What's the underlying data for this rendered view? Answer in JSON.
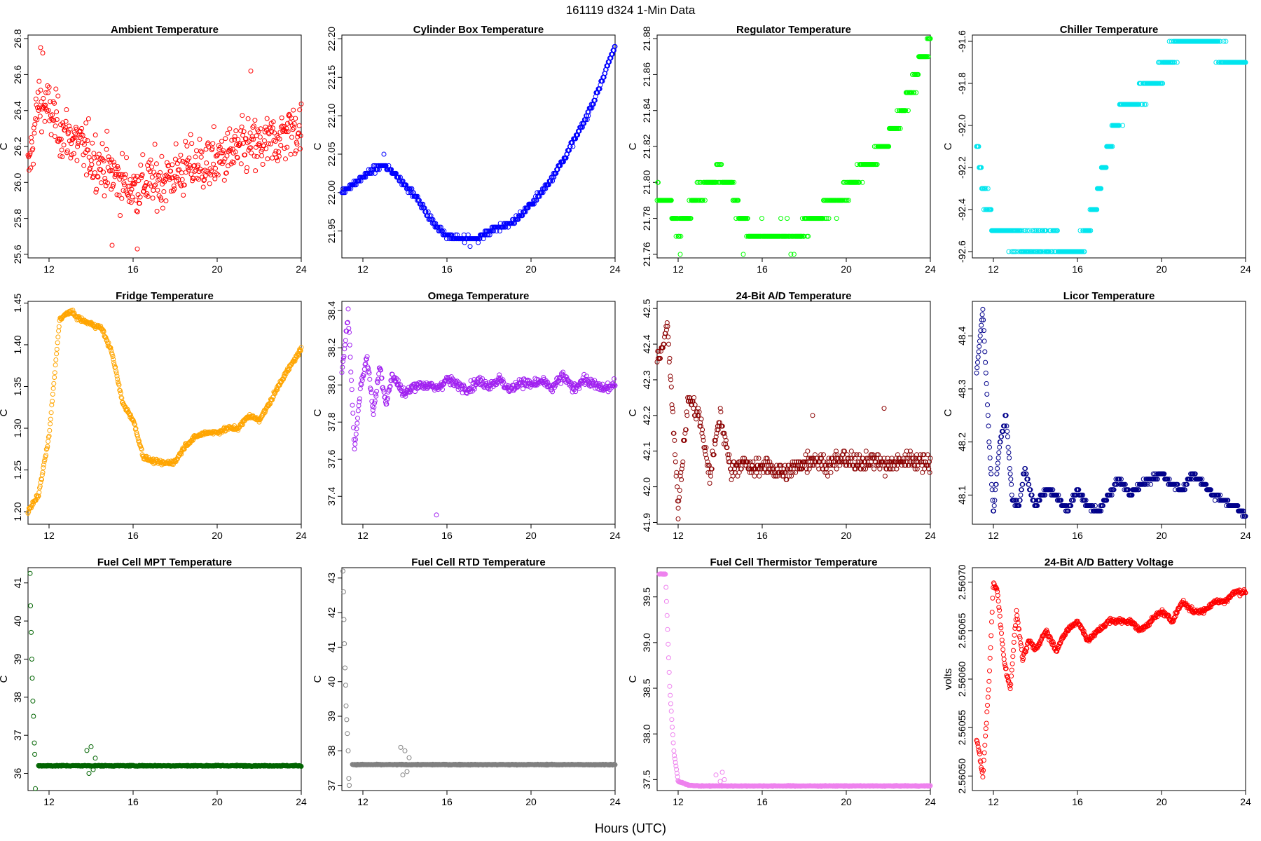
{
  "figure": {
    "title": "161119    d324    1-Min Data",
    "xlabel": "Hours (UTC)"
  },
  "chart_data": [
    {
      "type": "scatter",
      "title": "Ambient Temperature",
      "ylabel": "C",
      "color": "#ff0000",
      "xlim": [
        11,
        24
      ],
      "ylim": [
        25.58,
        26.82
      ],
      "xticks": [
        12,
        16,
        20,
        24
      ],
      "yticks": [
        25.6,
        25.8,
        26.0,
        26.2,
        26.4,
        26.6,
        26.8
      ],
      "ytick_labels": [
        "25.6",
        "25.8",
        "26.0",
        "26.2",
        "26.4",
        "26.6",
        "26.8"
      ],
      "x": [
        11,
        11.5,
        12,
        12.5,
        13,
        13.5,
        14,
        14.5,
        15,
        15.5,
        16,
        16.5,
        17,
        17.5,
        18,
        18.5,
        19,
        19.5,
        20,
        20.5,
        21,
        21.5,
        22,
        22.5,
        23,
        23.5,
        24
      ],
      "y": [
        26.05,
        26.45,
        26.4,
        26.3,
        26.25,
        26.2,
        26.15,
        26.1,
        26.05,
        26.0,
        25.97,
        26.0,
        26.0,
        26.02,
        26.05,
        26.08,
        26.1,
        26.1,
        26.12,
        26.15,
        26.18,
        26.2,
        26.2,
        26.22,
        26.25,
        26.3,
        26.3
      ],
      "noise": 0.18,
      "outliers": [
        [
          11.6,
          26.75
        ],
        [
          11.7,
          26.72
        ],
        [
          16.2,
          25.63
        ],
        [
          21.6,
          26.62
        ],
        [
          15.0,
          25.65
        ]
      ]
    },
    {
      "type": "scatter",
      "title": "Cylinder Box Temperature",
      "ylabel": "C",
      "color": "#0000ff",
      "xlim": [
        11,
        24
      ],
      "ylim": [
        21.915,
        22.205
      ],
      "xticks": [
        12,
        16,
        20,
        24
      ],
      "yticks": [
        21.95,
        22.0,
        22.05,
        22.1,
        22.15,
        22.2
      ],
      "ytick_labels": [
        "21.95",
        "22.00",
        "22.05",
        "22.10",
        "22.15",
        "22.20"
      ],
      "x": [
        11,
        11.5,
        12,
        12.5,
        13,
        13.5,
        14,
        14.5,
        15,
        15.5,
        16,
        16.5,
        17,
        17.5,
        18,
        18.5,
        19,
        19.5,
        20,
        20.5,
        21,
        21.5,
        22,
        22.5,
        23,
        23.5,
        24
      ],
      "y": [
        22.0,
        22.01,
        22.02,
        22.03,
        22.035,
        22.025,
        22.01,
        21.995,
        21.975,
        21.955,
        21.945,
        21.94,
        21.94,
        21.94,
        21.95,
        21.955,
        21.96,
        21.97,
        21.985,
        22.0,
        22.02,
        22.04,
        22.065,
        22.09,
        22.12,
        22.155,
        22.19
      ],
      "noise": 0.004,
      "quant": 0.005,
      "outliers": [
        [
          17.1,
          21.93
        ],
        [
          13.0,
          22.05
        ]
      ]
    },
    {
      "type": "scatter",
      "title": "Regulator Temperature",
      "ylabel": "C",
      "color": "#00ff00",
      "xlim": [
        11,
        24
      ],
      "ylim": [
        21.758,
        21.882
      ],
      "xticks": [
        12,
        16,
        20,
        24
      ],
      "yticks": [
        21.76,
        21.78,
        21.8,
        21.82,
        21.84,
        21.86,
        21.88
      ],
      "ytick_labels": [
        "21.76",
        "21.78",
        "21.80",
        "21.82",
        "21.84",
        "21.86",
        "21.88"
      ],
      "x": [
        11,
        11.5,
        12,
        12.5,
        13,
        13.5,
        14,
        14.5,
        15,
        15.5,
        16,
        16.5,
        17,
        17.5,
        18,
        18.5,
        19,
        19.5,
        20,
        20.5,
        21,
        21.5,
        22,
        22.5,
        23,
        23.5,
        24
      ],
      "y": [
        21.795,
        21.79,
        21.775,
        21.785,
        21.795,
        21.8,
        21.805,
        21.8,
        21.78,
        21.77,
        21.77,
        21.77,
        21.77,
        21.77,
        21.775,
        21.78,
        21.785,
        21.79,
        21.795,
        21.805,
        21.81,
        21.815,
        21.825,
        21.835,
        21.85,
        21.865,
        21.875
      ],
      "noise": 0.005,
      "quant": 0.01,
      "outliers": [
        [
          12.1,
          21.76
        ],
        [
          15.1,
          21.76
        ],
        [
          23.9,
          21.88
        ]
      ]
    },
    {
      "type": "scatter",
      "title": "Chiller Temperature",
      "ylabel": "C",
      "color": "#00e5ee",
      "xlim": [
        11,
        24
      ],
      "ylim": [
        -92.63,
        -91.57
      ],
      "xticks": [
        12,
        16,
        20,
        24
      ],
      "yticks": [
        -92.6,
        -92.4,
        -92.2,
        -92.0,
        -91.8,
        -91.6
      ],
      "ytick_labels": [
        "-92.6",
        "-92.4",
        "-92.2",
        "-92.0",
        "-91.8",
        "-91.6"
      ],
      "x": [
        11.2,
        11.5,
        11.8,
        12,
        12.5,
        13,
        13.5,
        14,
        14.5,
        15,
        15.5,
        16,
        16.5,
        17,
        17.5,
        18,
        18.5,
        19,
        19.5,
        20,
        20.5,
        21,
        21.5,
        22,
        22.5,
        23,
        23.5,
        24
      ],
      "y": [
        -92.1,
        -92.3,
        -92.4,
        -92.5,
        -92.5,
        -92.55,
        -92.55,
        -92.55,
        -92.55,
        -92.55,
        -92.6,
        -92.6,
        -92.5,
        -92.3,
        -92.1,
        -91.95,
        -91.9,
        -91.85,
        -91.8,
        -91.75,
        -91.65,
        -91.6,
        -91.6,
        -91.6,
        -91.62,
        -91.68,
        -91.7,
        -91.7
      ],
      "noise": 0.04,
      "quant": 0.1,
      "outliers": [
        [
          13.0,
          -92.6
        ],
        [
          14.5,
          -92.6
        ]
      ]
    },
    {
      "type": "scatter",
      "title": "Fridge Temperature",
      "ylabel": "C",
      "color": "#ffa500",
      "xlim": [
        11,
        24
      ],
      "ylim": [
        1.185,
        1.452
      ],
      "xticks": [
        12,
        16,
        20,
        24
      ],
      "yticks": [
        1.2,
        1.25,
        1.3,
        1.35,
        1.4,
        1.45
      ],
      "ytick_labels": [
        "1.20",
        "1.25",
        "1.30",
        "1.35",
        "1.40",
        "1.45"
      ],
      "x": [
        11,
        11.5,
        12,
        12.5,
        13,
        13.5,
        14,
        14.5,
        15,
        15.5,
        16,
        16.5,
        17,
        17.5,
        18,
        18.5,
        19,
        19.5,
        20,
        20.5,
        21,
        21.5,
        22,
        22.5,
        23,
        23.5,
        24
      ],
      "y": [
        1.2,
        1.22,
        1.29,
        1.43,
        1.44,
        1.43,
        1.425,
        1.42,
        1.39,
        1.33,
        1.31,
        1.265,
        1.26,
        1.258,
        1.26,
        1.28,
        1.29,
        1.295,
        1.295,
        1.3,
        1.3,
        1.315,
        1.31,
        1.33,
        1.355,
        1.375,
        1.395
      ],
      "noise": 0.003
    },
    {
      "type": "scatter",
      "title": "Omega Temperature",
      "ylabel": "C",
      "color": "#a020f0",
      "xlim": [
        11,
        24
      ],
      "ylim": [
        37.25,
        38.45
      ],
      "xticks": [
        12,
        16,
        20,
        24
      ],
      "yticks": [
        37.4,
        37.6,
        37.8,
        38.0,
        38.2,
        38.4
      ],
      "ytick_labels": [
        "37.4",
        "37.6",
        "37.8",
        "38.0",
        "38.2",
        "38.4"
      ],
      "x": [
        11,
        11.3,
        11.6,
        11.9,
        12.2,
        12.5,
        12.8,
        13.1,
        13.4,
        13.7,
        14.0,
        14.5,
        15,
        15.5,
        16,
        16.5,
        17,
        17.5,
        18,
        18.5,
        19,
        19.5,
        20,
        20.5,
        21,
        21.5,
        22,
        22.5,
        23,
        23.5,
        24
      ],
      "y": [
        38.05,
        38.4,
        37.65,
        38.0,
        38.15,
        37.85,
        38.1,
        37.9,
        38.05,
        38.0,
        37.95,
        38.0,
        38.0,
        37.98,
        38.03,
        38.0,
        37.98,
        38.02,
        38.0,
        38.03,
        37.97,
        38.02,
        38.0,
        38.02,
        37.98,
        38.05,
        37.98,
        38.03,
        38.0,
        37.98,
        38.0
      ],
      "noise": 0.03,
      "outliers": [
        [
          15.5,
          37.3
        ]
      ]
    },
    {
      "type": "scatter",
      "title": "24-Bit A/D Temperature",
      "ylabel": "C",
      "color": "#8b0000",
      "xlim": [
        11,
        24
      ],
      "ylim": [
        41.895,
        42.52
      ],
      "xticks": [
        12,
        16,
        20,
        24
      ],
      "yticks": [
        41.9,
        42.0,
        42.1,
        42.2,
        42.3,
        42.4,
        42.5
      ],
      "ytick_labels": [
        "41.9",
        "42.0",
        "42.1",
        "42.2",
        "42.3",
        "42.4",
        "42.5"
      ],
      "x": [
        11,
        11.5,
        12,
        12.5,
        13,
        13.5,
        14,
        14.5,
        15,
        15.5,
        16,
        16.5,
        17,
        17.5,
        18,
        18.5,
        19,
        19.5,
        20,
        20.5,
        21,
        21.5,
        22,
        22.5,
        23,
        23.5,
        24
      ],
      "y": [
        42.35,
        42.45,
        41.95,
        42.25,
        42.2,
        42.03,
        42.2,
        42.05,
        42.07,
        42.05,
        42.06,
        42.05,
        42.04,
        42.05,
        42.07,
        42.08,
        42.06,
        42.07,
        42.08,
        42.06,
        42.08,
        42.07,
        42.06,
        42.07,
        42.08,
        42.07,
        42.07
      ],
      "noise": 0.03,
      "quant": 0.01,
      "outliers": [
        [
          18.4,
          42.2
        ],
        [
          21.8,
          42.22
        ],
        [
          12.0,
          41.91
        ]
      ]
    },
    {
      "type": "scatter",
      "title": "Licor Temperature",
      "ylabel": "C",
      "color": "#00008b",
      "xlim": [
        11,
        24
      ],
      "ylim": [
        48.045,
        48.465
      ],
      "xticks": [
        12,
        16,
        20,
        24
      ],
      "yticks": [
        48.1,
        48.2,
        48.3,
        48.4
      ],
      "ytick_labels": [
        "48.1",
        "48.2",
        "48.3",
        "48.4"
      ],
      "x": [
        11.2,
        11.5,
        11.8,
        12.0,
        12.3,
        12.6,
        12.9,
        13.2,
        13.5,
        13.8,
        14.0,
        14.5,
        15,
        15.5,
        16,
        16.5,
        17,
        17.5,
        18,
        18.5,
        19,
        19.5,
        20,
        20.5,
        21,
        21.5,
        22,
        22.5,
        23,
        23.5,
        24
      ],
      "y": [
        48.33,
        48.45,
        48.2,
        48.06,
        48.2,
        48.25,
        48.09,
        48.08,
        48.15,
        48.1,
        48.08,
        48.11,
        48.1,
        48.07,
        48.11,
        48.08,
        48.07,
        48.1,
        48.13,
        48.1,
        48.12,
        48.13,
        48.14,
        48.12,
        48.11,
        48.14,
        48.12,
        48.1,
        48.09,
        48.08,
        48.06
      ],
      "noise": 0.005,
      "quant": 0.01
    },
    {
      "type": "scatter",
      "title": "Fuel Cell MPT Temperature",
      "ylabel": "C",
      "color": "#006400",
      "xlim": [
        11,
        24
      ],
      "ylim": [
        35.55,
        41.4
      ],
      "xticks": [
        12,
        16,
        20,
        24
      ],
      "yticks": [
        36,
        37,
        38,
        39,
        40,
        41
      ],
      "ytick_labels": [
        "36",
        "37",
        "38",
        "39",
        "40",
        "41"
      ],
      "x": [
        11.5,
        12,
        13,
        14,
        15,
        16,
        17,
        18,
        19,
        20,
        21,
        22,
        23,
        24
      ],
      "y": [
        36.2,
        36.2,
        36.2,
        36.2,
        36.2,
        36.2,
        36.2,
        36.2,
        36.2,
        36.2,
        36.2,
        36.2,
        36.2,
        36.2
      ],
      "noise": 0.015,
      "outliers": [
        [
          11.1,
          41.25
        ],
        [
          11.12,
          40.4
        ],
        [
          11.15,
          39.7
        ],
        [
          11.18,
          39.0
        ],
        [
          11.2,
          38.5
        ],
        [
          11.23,
          37.9
        ],
        [
          11.26,
          37.5
        ],
        [
          11.3,
          36.8
        ],
        [
          11.32,
          36.5
        ],
        [
          11.35,
          35.6
        ],
        [
          13.8,
          36.6
        ],
        [
          13.9,
          36.0
        ],
        [
          14.0,
          36.7
        ],
        [
          14.1,
          36.1
        ],
        [
          14.2,
          36.4
        ]
      ]
    },
    {
      "type": "scatter",
      "title": "Fuel Cell RTD Temperature",
      "ylabel": "C",
      "color": "#808080",
      "xlim": [
        11,
        24
      ],
      "ylim": [
        36.85,
        43.3
      ],
      "xticks": [
        12,
        16,
        20,
        24
      ],
      "yticks": [
        37,
        38,
        39,
        40,
        41,
        42,
        43
      ],
      "ytick_labels": [
        "37",
        "38",
        "39",
        "40",
        "41",
        "42",
        "43"
      ],
      "x": [
        11.5,
        12,
        13,
        14,
        15,
        16,
        17,
        18,
        19,
        20,
        21,
        22,
        23,
        24
      ],
      "y": [
        37.6,
        37.6,
        37.6,
        37.6,
        37.6,
        37.6,
        37.6,
        37.6,
        37.6,
        37.6,
        37.6,
        37.6,
        37.6,
        37.6
      ],
      "noise": 0.015,
      "outliers": [
        [
          11.05,
          43.2
        ],
        [
          11.08,
          42.6
        ],
        [
          11.1,
          41.8
        ],
        [
          11.12,
          41.1
        ],
        [
          11.15,
          40.4
        ],
        [
          11.18,
          39.9
        ],
        [
          11.2,
          39.3
        ],
        [
          11.23,
          38.9
        ],
        [
          11.26,
          38.5
        ],
        [
          11.3,
          38.0
        ],
        [
          11.33,
          37.2
        ],
        [
          11.35,
          37.0
        ],
        [
          13.8,
          38.1
        ],
        [
          13.9,
          37.3
        ],
        [
          14.0,
          38.0
        ],
        [
          14.1,
          37.4
        ],
        [
          14.2,
          37.8
        ]
      ]
    },
    {
      "type": "scatter",
      "title": "Fuel Cell Thermistor Temperature",
      "ylabel": "C",
      "color": "#ee82ee",
      "xlim": [
        11,
        24
      ],
      "ylim": [
        37.38,
        39.82
      ],
      "xticks": [
        12,
        16,
        20,
        24
      ],
      "yticks": [
        37.5,
        38.0,
        38.5,
        39.0,
        39.5
      ],
      "ytick_labels": [
        "37.5",
        "38.0",
        "38.5",
        "39.0",
        "39.5"
      ],
      "x": [
        11.1,
        11.4,
        11.6,
        11.8,
        12.0,
        12.5,
        13,
        14,
        15,
        16,
        17,
        18,
        19,
        20,
        21,
        22,
        23,
        24
      ],
      "y": [
        39.75,
        39.75,
        38.5,
        37.8,
        37.48,
        37.44,
        37.43,
        37.43,
        37.43,
        37.43,
        37.43,
        37.43,
        37.43,
        37.43,
        37.43,
        37.43,
        37.43,
        37.43
      ],
      "noise": 0.005,
      "outliers": [
        [
          13.8,
          37.55
        ],
        [
          14.0,
          37.48
        ],
        [
          14.1,
          37.58
        ],
        [
          14.2,
          37.5
        ]
      ]
    },
    {
      "type": "scatter",
      "title": "24-Bit A/D Battery Voltage",
      "ylabel": "volts",
      "color": "#ff0000",
      "xlim": [
        11,
        24
      ],
      "ylim": [
        2.560485,
        2.560715
      ],
      "xticks": [
        12,
        16,
        20,
        24
      ],
      "yticks": [
        2.5605,
        2.56055,
        2.5606,
        2.56065,
        2.5607
      ],
      "ytick_labels": [
        "2.56050",
        "2.56055",
        "2.56060",
        "2.56065",
        "2.56070"
      ],
      "x": [
        11.2,
        11.5,
        11.8,
        12.0,
        12.2,
        12.5,
        12.8,
        13.1,
        13.4,
        13.7,
        14.0,
        14.5,
        15,
        15.5,
        16,
        16.5,
        17,
        17.5,
        18,
        18.5,
        19,
        19.5,
        20,
        20.5,
        21,
        21.5,
        22,
        22.5,
        23,
        23.5,
        24
      ],
      "y": [
        2.56054,
        2.5605,
        2.5606,
        2.5607,
        2.56069,
        2.56062,
        2.56059,
        2.56067,
        2.56062,
        2.56064,
        2.56063,
        2.56065,
        2.56063,
        2.56065,
        2.56066,
        2.56064,
        2.56065,
        2.56066,
        2.56066,
        2.56066,
        2.56065,
        2.56066,
        2.56067,
        2.56066,
        2.56068,
        2.56067,
        2.56067,
        2.56068,
        2.56068,
        2.56069,
        2.56069
      ],
      "noise": 3e-06
    }
  ]
}
